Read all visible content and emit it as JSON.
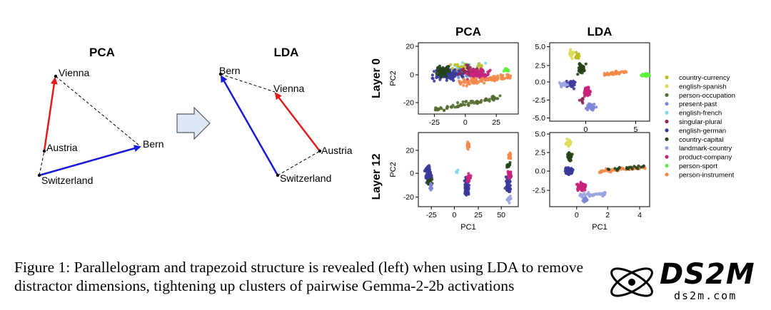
{
  "left_panel": {
    "pca_title": "PCA",
    "lda_title": "LDA",
    "pca_labels": {
      "vienna": "Vienna",
      "austria": "Austria",
      "bern": "Bern",
      "switzerland": "Switzerland"
    },
    "lda_labels": {
      "bern": "Bern",
      "vienna": "Vienna",
      "austria": "Austria",
      "switzerland": "Switzerland"
    }
  },
  "chart_data": [
    {
      "type": "scatter",
      "title": "PCA",
      "row_label": "Layer 0",
      "ylabel": "PC2",
      "xticks": [
        "-25",
        "0",
        "25"
      ],
      "yticks": [
        "20",
        "0",
        "-20"
      ]
    },
    {
      "type": "scatter",
      "title": "LDA",
      "row_label": "Layer 0",
      "xticks": [
        "0",
        "5"
      ],
      "yticks": [
        "5.0",
        "2.5",
        "0.0",
        "-2.5",
        "-5.0"
      ]
    },
    {
      "type": "scatter",
      "row_label": "Layer 12",
      "xlabel": "PC1",
      "ylabel": "PC2",
      "xticks": [
        "-25",
        "0",
        "25",
        "50"
      ],
      "yticks": [
        "20",
        "0",
        "-20"
      ]
    },
    {
      "type": "scatter",
      "row_label": "Layer 12",
      "xlabel": "PC1",
      "xticks": [
        "0",
        "2",
        "4"
      ],
      "yticks": [
        "5.0",
        "2.5",
        "0.0",
        "-2.5"
      ]
    }
  ],
  "legend": [
    {
      "name": "country-currency",
      "color": "#bcbd22"
    },
    {
      "name": "english-spanish",
      "color": "#dbdb5a"
    },
    {
      "name": "person-occupation",
      "color": "#556b2f"
    },
    {
      "name": "present-past",
      "color": "#7b86d6"
    },
    {
      "name": "english-french",
      "color": "#7fd9ec"
    },
    {
      "name": "singular-plural",
      "color": "#8b2a52"
    },
    {
      "name": "english-german",
      "color": "#3b3a9a"
    },
    {
      "name": "country-capital",
      "color": "#25441a"
    },
    {
      "name": "landmark-country",
      "color": "#9ba4e0"
    },
    {
      "name": "product-company",
      "color": "#c8237a"
    },
    {
      "name": "person-sport",
      "color": "#5fef3c"
    },
    {
      "name": "person-instrument",
      "color": "#f4884a"
    }
  ],
  "caption": {
    "line1": "Figure 1: Parallelogram and trapezoid structure is revealed (left) when using LDA to remove",
    "line2": "distractor dimensions, tightening up clusters of pairwise Gemma-2-2b activations"
  },
  "watermark": {
    "brand": "DS2M",
    "url": "ds2m.com"
  }
}
